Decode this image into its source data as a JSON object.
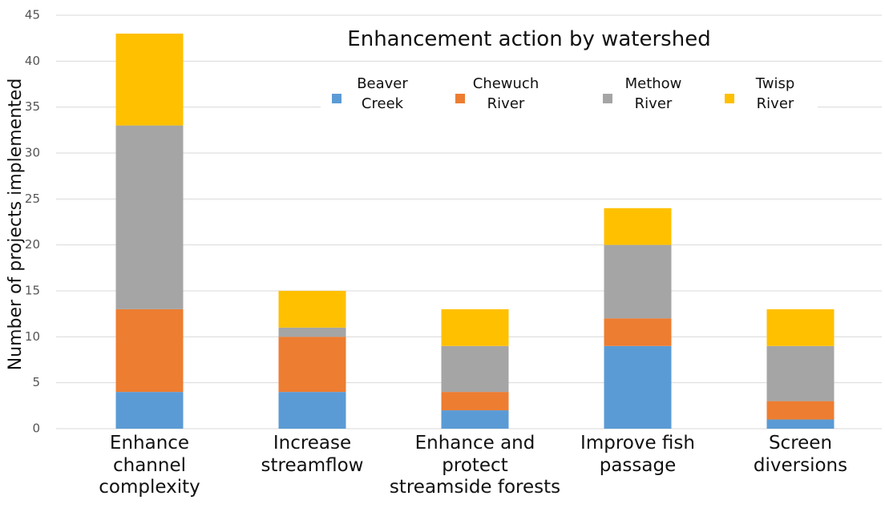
{
  "chart_data": {
    "type": "stacked_bar",
    "title": "Enhancement action by watershed",
    "y_label": "Number of projects implemented",
    "categories": [
      "Enhance channel complexity",
      "Increase streamflow",
      "Enhance and protect streamside forests",
      "Improve fish passage",
      "Screen diversions"
    ],
    "series": [
      {
        "name": "Beaver Creek",
        "color": "#5b9bd5",
        "values": [
          4,
          4,
          2,
          9,
          1
        ]
      },
      {
        "name": "Chewuch River",
        "color": "#ed7d31",
        "values": [
          9,
          6,
          2,
          3,
          2
        ]
      },
      {
        "name": "Methow River",
        "color": "#a5a5a5",
        "values": [
          20,
          1,
          5,
          8,
          6
        ]
      },
      {
        "name": "Twisp River",
        "color": "#ffc000",
        "values": [
          10,
          4,
          4,
          4,
          4
        ]
      }
    ],
    "ylim": [
      0,
      45
    ],
    "yticks": [
      0,
      5,
      10,
      15,
      20,
      25,
      30,
      35,
      40,
      45
    ],
    "grid": true,
    "legend": "top"
  }
}
